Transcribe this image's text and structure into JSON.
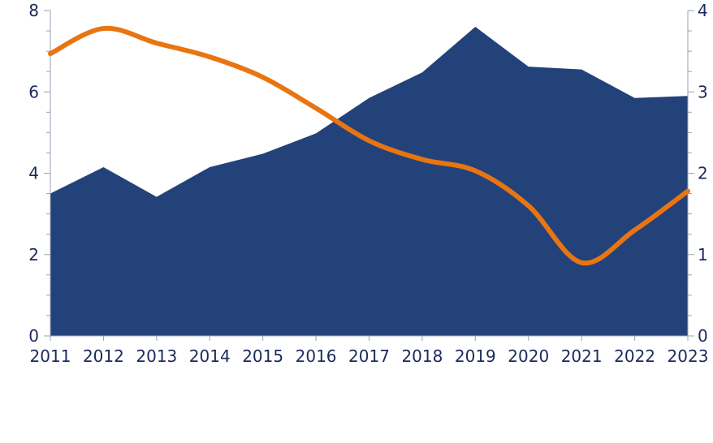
{
  "chart_data": {
    "type": "area",
    "title": "",
    "xlabel": "",
    "ylabel_left": "",
    "ylabel_right": "",
    "categories": [
      "2011",
      "2012",
      "2013",
      "2014",
      "2015",
      "2016",
      "2017",
      "2018",
      "2019",
      "2020",
      "2021",
      "2022",
      "2023"
    ],
    "ylim_left": [
      0,
      8
    ],
    "ylim_right": [
      0,
      4
    ],
    "yticks_left": [
      0,
      2,
      4,
      6,
      8
    ],
    "yticks_right": [
      0,
      1,
      2,
      3,
      4
    ],
    "grid": false,
    "legend": "none",
    "series": [
      {
        "type": "area",
        "axis": "left",
        "color": "#23427a",
        "values": [
          3.5,
          4.15,
          3.42,
          4.15,
          4.48,
          4.98,
          5.85,
          6.48,
          7.6,
          6.62,
          6.55,
          5.85,
          5.9
        ]
      },
      {
        "type": "line",
        "axis": "right",
        "color": "#e87511",
        "values": [
          3.47,
          3.78,
          3.6,
          3.43,
          3.18,
          2.8,
          2.4,
          2.17,
          2.03,
          1.6,
          0.9,
          1.3,
          1.78
        ]
      }
    ]
  }
}
